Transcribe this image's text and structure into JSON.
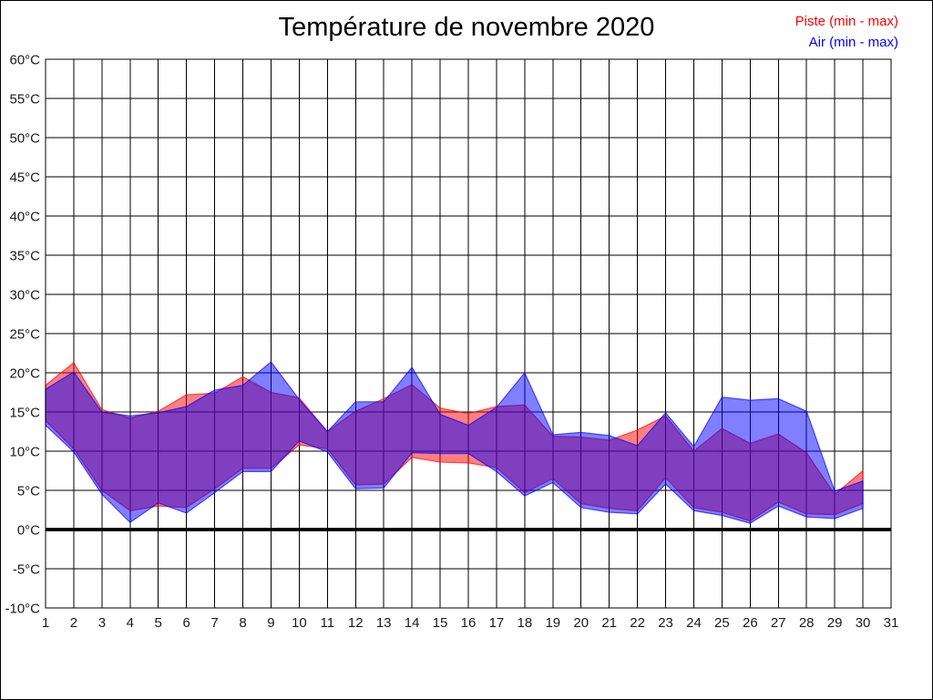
{
  "header": {
    "title": "Température de novembre 2020"
  },
  "legend": {
    "items": [
      {
        "label": "Piste (min - max)",
        "color": "#ff0000"
      },
      {
        "label": "Air (min - max)",
        "color": "#0000ff"
      }
    ]
  },
  "chart_data": {
    "type": "area",
    "subtype": "min-max-range-bands",
    "title": "Température de novembre 2020",
    "xlabel": "",
    "ylabel": "°C",
    "ylim": [
      -10,
      60
    ],
    "ytick_step": 5,
    "grid": true,
    "zero_line_thick": true,
    "legend_position": "top-right",
    "x_days": [
      1,
      2,
      3,
      4,
      5,
      6,
      7,
      8,
      9,
      10,
      11,
      12,
      13,
      14,
      15,
      16,
      17,
      18,
      19,
      20,
      21,
      22,
      23,
      24,
      25,
      26,
      27,
      28,
      29,
      30
    ],
    "x_tick_labels": [
      "1",
      "2",
      "3",
      "4",
      "5",
      "6",
      "7",
      "8",
      "9",
      "10",
      "11",
      "12",
      "13",
      "14",
      "15",
      "16",
      "17",
      "18",
      "19",
      "20",
      "21",
      "22",
      "23",
      "24",
      "25",
      "26",
      "27",
      "28",
      "29",
      "30",
      "31"
    ],
    "y_tick_labels": [
      "60°C",
      "55°C",
      "50°C",
      "45°C",
      "40°C",
      "35°C",
      "30°C",
      "25°C",
      "20°C",
      "15°C",
      "10°C",
      "5°C",
      "0°C",
      "-5°C",
      "-10°C"
    ],
    "series": [
      {
        "name": "Piste (min - max)",
        "color": "#ff0000",
        "fill_opacity": 0.5,
        "min": [
          13.9,
          10.3,
          5.0,
          2.4,
          3.0,
          2.8,
          5.2,
          7.8,
          7.8,
          10.8,
          10.3,
          5.7,
          5.8,
          9.2,
          8.6,
          8.5,
          7.9,
          4.7,
          6.5,
          3.3,
          2.7,
          2.4,
          6.6,
          2.8,
          2.2,
          1.1,
          3.5,
          2.0,
          1.9,
          3.3
        ],
        "max": [
          18.4,
          21.3,
          15.3,
          14.2,
          15.1,
          17.2,
          17.4,
          19.5,
          17.5,
          16.8,
          12.5,
          15.1,
          16.7,
          18.5,
          15.5,
          14.8,
          15.7,
          15.9,
          11.9,
          11.8,
          11.4,
          12.7,
          14.5,
          10.0,
          12.9,
          11.0,
          12.2,
          9.8,
          4.5,
          7.5
        ]
      },
      {
        "name": "Air (min - max)",
        "color": "#0000ff",
        "fill_opacity": 0.5,
        "min": [
          13.3,
          9.9,
          4.5,
          0.9,
          3.4,
          2.1,
          4.7,
          7.4,
          7.4,
          11.3,
          9.9,
          5.2,
          5.3,
          9.8,
          9.7,
          9.7,
          7.4,
          4.3,
          6.0,
          2.8,
          2.2,
          2.0,
          5.8,
          2.4,
          1.8,
          0.8,
          3.0,
          1.6,
          1.4,
          2.7
        ],
        "max": [
          17.9,
          20.1,
          15.0,
          14.5,
          14.9,
          15.7,
          17.8,
          18.4,
          21.4,
          16.6,
          12.5,
          16.3,
          16.3,
          20.7,
          14.7,
          13.3,
          15.6,
          20.0,
          12.1,
          12.4,
          12.0,
          10.7,
          14.9,
          10.6,
          16.9,
          16.5,
          16.7,
          15.1,
          4.9,
          6.2
        ]
      }
    ]
  }
}
